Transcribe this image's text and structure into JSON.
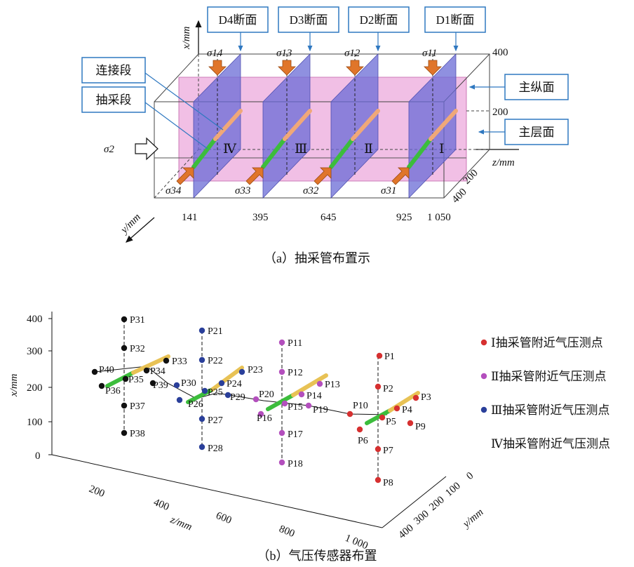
{
  "panel_a": {
    "caption": "（a）抽采管布置示",
    "sections": [
      "D4断面",
      "D3断面",
      "D2断面",
      "D1断面"
    ],
    "callouts": {
      "connect": "连接段",
      "extract": "抽采段",
      "main_long": "主纵面",
      "main_layer": "主层面"
    },
    "stress_top": [
      "σ14",
      "σ13",
      "σ12",
      "σ11"
    ],
    "stress_bottom": [
      "σ34",
      "σ33",
      "σ32",
      "σ31"
    ],
    "stress_side": "σ2",
    "pipe_roman": [
      "Ⅳ",
      "Ⅲ",
      "Ⅱ",
      "Ⅰ"
    ],
    "z_ticks": [
      "141",
      "395",
      "645",
      "925",
      "1 050"
    ],
    "x_right_ticks": [
      "400",
      "200"
    ],
    "depth_ticks": [
      "200",
      "400"
    ],
    "x_axis_label": "x/mm",
    "y_axis_label": "y/mm",
    "z_axis_label": "z/mm"
  },
  "panel_b": {
    "caption": "（b）气压传感器布置",
    "x_axis_label": "x/mm",
    "z_axis_label": "z/mm",
    "y_axis_label": "y/mm",
    "x_ticks": [
      "400",
      "300",
      "200",
      "100",
      "0"
    ],
    "z_ticks": [
      "200",
      "400",
      "600",
      "800",
      "1 000"
    ],
    "y_ticks": [
      "0",
      "100",
      "200",
      "300",
      "400"
    ],
    "legend": [
      {
        "label": "Ⅰ抽采管附近气压测点",
        "color": "#d63030"
      },
      {
        "label": "Ⅱ抽采管附近气压测点",
        "color": "#b34fbd"
      },
      {
        "label": "Ⅲ抽采管附近气压测点",
        "color": "#2a3f9a"
      },
      {
        "label": "Ⅳ抽采管附近气压测点",
        "color": "#111111"
      }
    ],
    "points": [
      "P1",
      "P2",
      "P3",
      "P4",
      "P5",
      "P6",
      "P7",
      "P8",
      "P9",
      "P10",
      "P11",
      "P12",
      "P13",
      "P14",
      "P15",
      "P16",
      "P17",
      "P18",
      "P19",
      "P20",
      "P21",
      "P22",
      "P23",
      "P24",
      "P25",
      "P26",
      "P27",
      "P28",
      "P29",
      "P30",
      "P31",
      "P32",
      "P33",
      "P34",
      "P35",
      "P36",
      "P37",
      "P38",
      "P39",
      "P40"
    ]
  },
  "colors": {
    "pink_plane": "#e58ad0",
    "blue_plane": "#6a6bd6",
    "arrow": "#e0752a",
    "callout_border": "#2f78c0",
    "pipe_green": "#3cbd3c",
    "pipe_orange": "#f0a878",
    "pipe_gold": "#e8c255"
  }
}
